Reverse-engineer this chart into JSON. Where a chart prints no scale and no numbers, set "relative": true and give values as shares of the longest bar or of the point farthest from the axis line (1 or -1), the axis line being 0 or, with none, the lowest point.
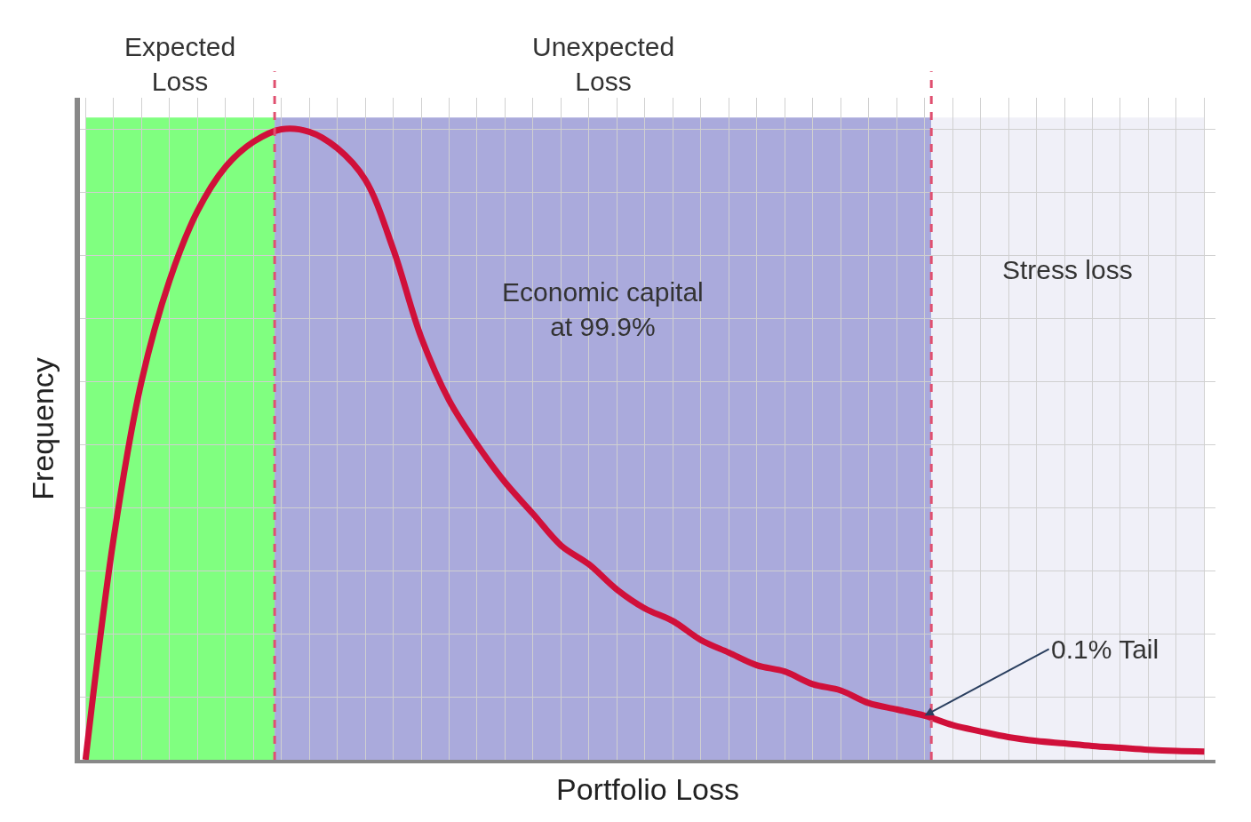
{
  "chart_data": {
    "type": "line",
    "relative": true,
    "xlabel": "Portfolio Loss",
    "ylabel": "Frequency",
    "categories": [
      null,
      null,
      null,
      null,
      null,
      null,
      null,
      null,
      null,
      null,
      null,
      null,
      null,
      null,
      null,
      null,
      null,
      null,
      null,
      null,
      null,
      null,
      null,
      null,
      null,
      null,
      null,
      null,
      null,
      null,
      null,
      null,
      null,
      null,
      null,
      null,
      null,
      null,
      null,
      null,
      null
    ],
    "series": [
      {
        "color": "#d0103a",
        "values": [
          0,
          0.35,
          0.6,
          0.76,
          0.87,
          0.94,
          0.98,
          1.0,
          0.996,
          0.97,
          0.92,
          0.81,
          0.67,
          0.57,
          0.5,
          0.44,
          0.39,
          0.34,
          0.31,
          0.27,
          0.24,
          0.22,
          0.19,
          0.17,
          0.15,
          0.14,
          0.12,
          0.11,
          0.09,
          0.08,
          0.07,
          0.055,
          0.045,
          0.036,
          0.03,
          0.026,
          0.022,
          0.019,
          0.016,
          0.014,
          0.013
        ]
      }
    ],
    "annotations": [
      "Expected Loss",
      "Unexpected Loss",
      "Economic capital at 99.9%",
      "Stress loss",
      "0.1% Tail"
    ],
    "grid": true,
    "marker": "none",
    "line_style": "solid"
  }
}
